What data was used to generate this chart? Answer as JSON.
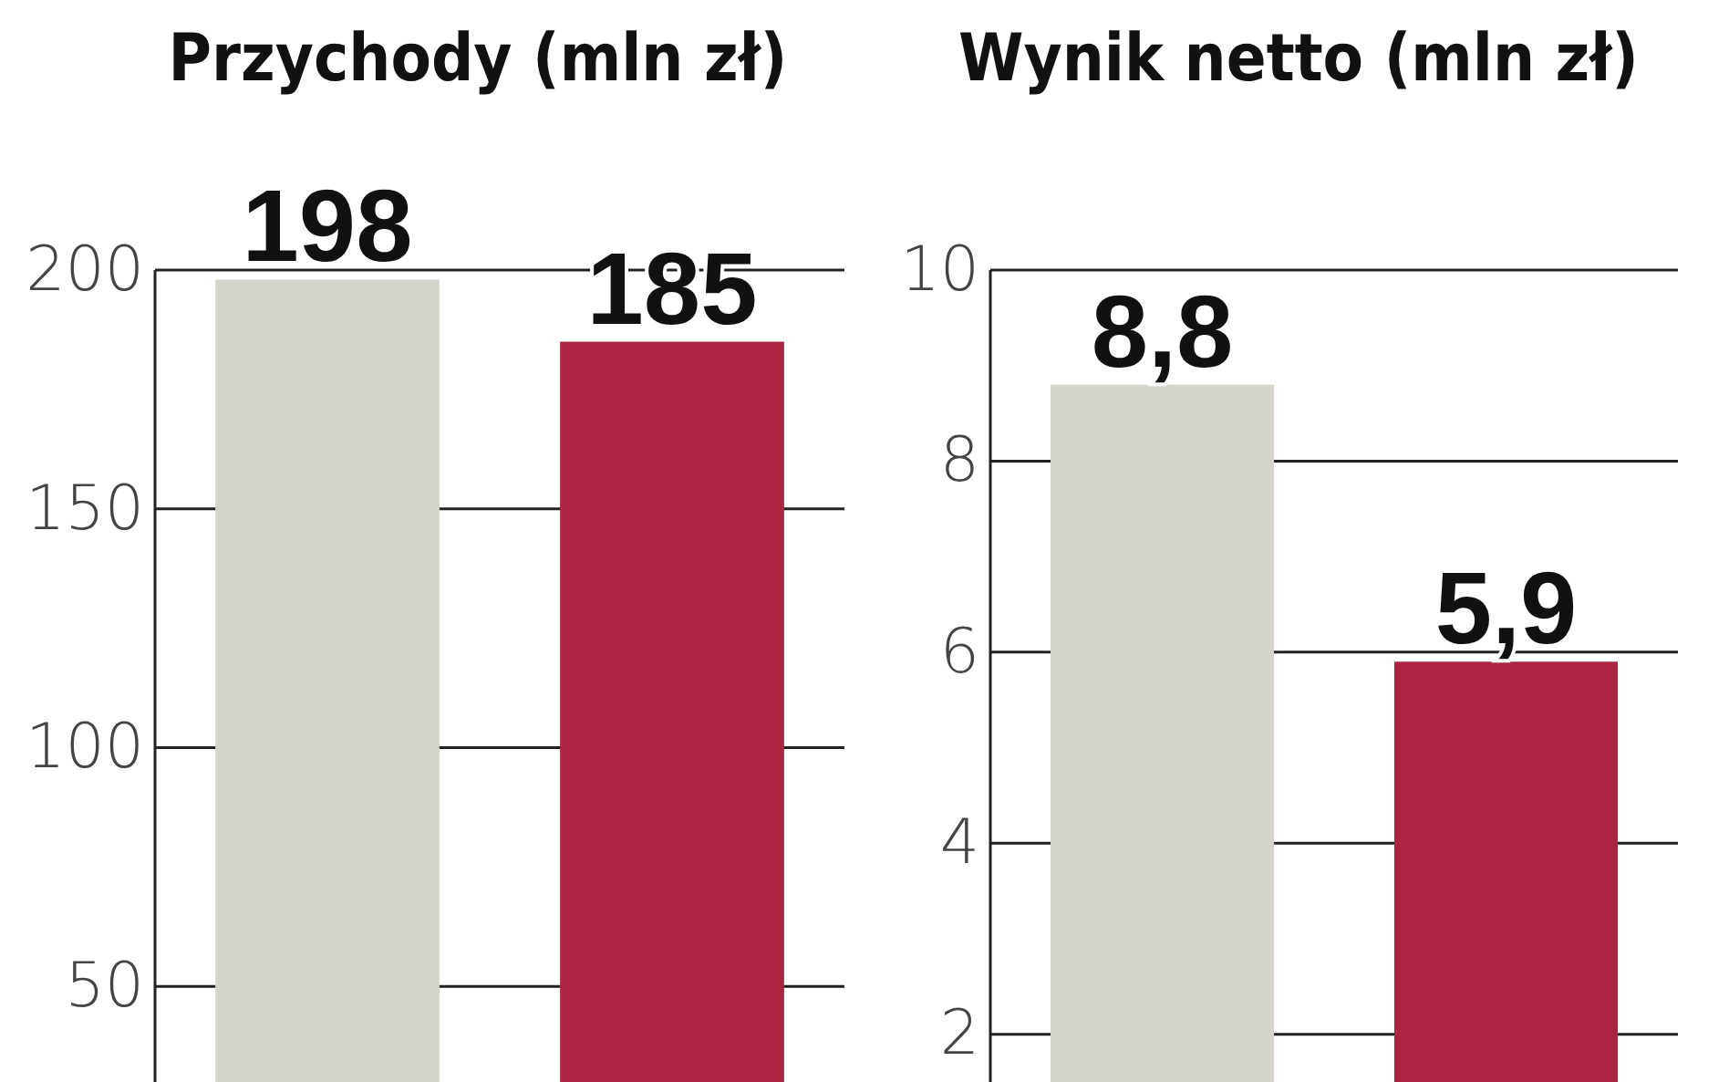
{
  "chart_data": [
    {
      "type": "bar",
      "title": "Przychody (mln zł)",
      "categories": [
        null,
        null
      ],
      "values": [
        198,
        185
      ],
      "colors": [
        "#d5d4cc",
        "#ab2442"
      ],
      "value_labels": [
        "198",
        "185"
      ],
      "ylim": [
        30,
        200
      ],
      "yticks": [
        50,
        100,
        150,
        200
      ],
      "grid": "y"
    },
    {
      "type": "bar",
      "title": "Wynik netto (mln zł)",
      "categories": [
        null,
        null
      ],
      "values": [
        8.8,
        5.9
      ],
      "colors": [
        "#d5d4cc",
        "#ab2442"
      ],
      "value_labels": [
        "8,8",
        "5,9"
      ],
      "ylim": [
        1.5,
        10
      ],
      "yticks": [
        2,
        4,
        6,
        8,
        10
      ],
      "grid": "y"
    }
  ]
}
